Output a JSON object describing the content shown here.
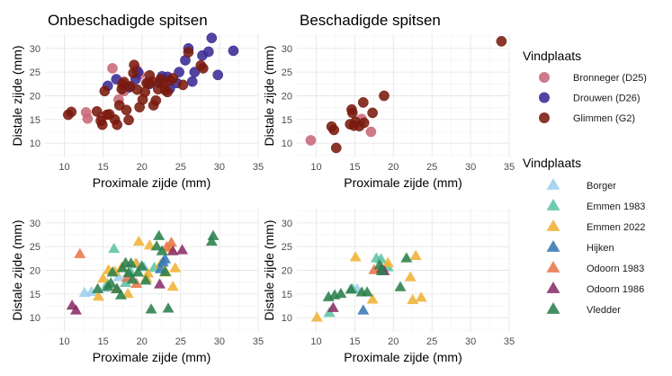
{
  "chart_data": [
    {
      "type": "scatter",
      "title": "Onbeschadigde spitsen",
      "xlabel": "Proximale zijde (mm)",
      "ylabel": "Distale zijde (mm)",
      "xlim": [
        7.5,
        35
      ],
      "ylim": [
        7,
        33
      ],
      "xticks": [
        10,
        15,
        20,
        25,
        30,
        35
      ],
      "yticks": [
        10,
        15,
        20,
        25,
        30
      ],
      "grid": true,
      "marker": "circle",
      "legend_group": "sites1",
      "series": [
        {
          "name": "Bronneger (D25)",
          "points": [
            [
              12.8,
              16.5
            ],
            [
              13.0,
              15.2
            ],
            [
              16.2,
              25.8
            ],
            [
              17.0,
              19.2
            ],
            [
              17.7,
              21.0
            ],
            [
              19.3,
              25.5
            ],
            [
              19.7,
              24.5
            ],
            [
              14.8,
              15.6
            ]
          ]
        },
        {
          "name": "Drouwen (D26)",
          "points": [
            [
              15.6,
              22.1
            ],
            [
              16.7,
              23.5
            ],
            [
              18.4,
              21.8
            ],
            [
              19.2,
              23.5
            ],
            [
              19.5,
              25.0
            ],
            [
              21.0,
              22.5
            ],
            [
              22.3,
              22.7
            ],
            [
              23.3,
              24.0
            ],
            [
              23.6,
              21.5
            ],
            [
              24.8,
              25.0
            ],
            [
              25.6,
              27.5
            ],
            [
              26.0,
              30.0
            ],
            [
              26.5,
              23.0
            ],
            [
              26.8,
              25.0
            ],
            [
              27.8,
              28.5
            ],
            [
              28.6,
              29.3
            ],
            [
              29.0,
              32.2
            ],
            [
              29.8,
              24.4
            ],
            [
              31.8,
              29.5
            ],
            [
              24.5,
              22.7
            ],
            [
              22.6,
              24.1
            ]
          ]
        },
        {
          "name": "Glimmen (G2)",
          "points": [
            [
              10.5,
              16.0
            ],
            [
              10.9,
              16.6
            ],
            [
              14.2,
              16.7
            ],
            [
              14.7,
              14.7
            ],
            [
              14.9,
              13.9
            ],
            [
              15.2,
              21.0
            ],
            [
              15.5,
              16.0
            ],
            [
              15.8,
              16.1
            ],
            [
              16.5,
              15.0
            ],
            [
              16.8,
              13.9
            ],
            [
              17.1,
              18.0
            ],
            [
              17.5,
              22.4
            ],
            [
              17.7,
              22.9
            ],
            [
              18.0,
              17.0
            ],
            [
              18.3,
              14.9
            ],
            [
              18.5,
              22.0
            ],
            [
              18.9,
              24.8
            ],
            [
              19.0,
              26.5
            ],
            [
              19.4,
              21.3
            ],
            [
              19.7,
              17.6
            ],
            [
              20.1,
              19.2
            ],
            [
              20.4,
              20.8
            ],
            [
              20.8,
              22.6
            ],
            [
              21.0,
              24.3
            ],
            [
              21.3,
              23.0
            ],
            [
              21.5,
              18.0
            ],
            [
              21.8,
              19.0
            ],
            [
              22.1,
              21.4
            ],
            [
              22.4,
              23.5
            ],
            [
              22.8,
              22.7
            ],
            [
              23.0,
              21.2
            ],
            [
              23.3,
              20.8
            ],
            [
              23.6,
              23.2
            ],
            [
              24.0,
              23.7
            ],
            [
              25.3,
              22.3
            ],
            [
              26.0,
              29.2
            ],
            [
              27.6,
              26.4
            ],
            [
              27.9,
              25.8
            ],
            [
              17.4,
              21.4
            ],
            [
              20.6,
              22.7
            ]
          ]
        }
      ]
    },
    {
      "type": "scatter",
      "title": "Beschadigde spitsen",
      "xlabel": "Proximale zijde (mm)",
      "ylabel": "Distale zijde (mm)",
      "xlim": [
        7.5,
        35
      ],
      "ylim": [
        7,
        33
      ],
      "xticks": [
        10,
        15,
        20,
        25,
        30,
        35
      ],
      "yticks": [
        10,
        15,
        20,
        25,
        30
      ],
      "grid": true,
      "marker": "circle",
      "legend_group": "sites1",
      "series": [
        {
          "name": "Bronneger (D25)",
          "points": [
            [
              9.3,
              10.6
            ],
            [
              15.9,
              15.1
            ],
            [
              17.1,
              12.4
            ]
          ]
        },
        {
          "name": "Drouwen (D26)",
          "points": []
        },
        {
          "name": "Glimmen (G2)",
          "points": [
            [
              12.0,
              13.5
            ],
            [
              12.3,
              12.8
            ],
            [
              12.6,
              9.0
            ],
            [
              14.4,
              14.0
            ],
            [
              14.6,
              17.1
            ],
            [
              14.7,
              16.4
            ],
            [
              14.9,
              13.7
            ],
            [
              15.1,
              14.5
            ],
            [
              15.6,
              13.6
            ],
            [
              16.1,
              18.6
            ],
            [
              16.2,
              14.3
            ],
            [
              17.3,
              16.4
            ],
            [
              18.8,
              20.0
            ],
            [
              34.0,
              31.5
            ]
          ]
        }
      ]
    },
    {
      "type": "scatter",
      "xlabel": "Proximale zijde (mm)",
      "ylabel": "Distale zijde (mm)",
      "xlim": [
        7.5,
        35
      ],
      "ylim": [
        7,
        33
      ],
      "xticks": [
        10,
        15,
        20,
        25,
        30,
        35
      ],
      "yticks": [
        10,
        15,
        20,
        25,
        30
      ],
      "grid": true,
      "marker": "triangle",
      "legend_group": "sites2",
      "series": [
        {
          "name": "Borger",
          "points": [
            [
              12.6,
              15.2
            ],
            [
              13.5,
              15.4
            ],
            [
              15.2,
              16.2
            ],
            [
              17.0,
              18.5
            ],
            [
              18.2,
              19.2
            ],
            [
              19.4,
              21.2
            ],
            [
              20.3,
              20.6
            ],
            [
              22.8,
              21.9
            ]
          ]
        },
        {
          "name": "Emmen 1983",
          "points": [
            [
              16.4,
              24.5
            ],
            [
              15.6,
              17.0
            ],
            [
              17.9,
              17.3
            ],
            [
              18.6,
              19.5
            ],
            [
              21.6,
              20.5
            ]
          ]
        },
        {
          "name": "Emmen 2022",
          "points": [
            [
              14.4,
              14.4
            ],
            [
              15.0,
              18.2
            ],
            [
              15.7,
              20.0
            ],
            [
              16.5,
              19.7
            ],
            [
              17.4,
              20.6
            ],
            [
              18.2,
              15.0
            ],
            [
              19.2,
              21.4
            ],
            [
              19.6,
              26.0
            ],
            [
              20.8,
              19.3
            ],
            [
              21.0,
              25.2
            ],
            [
              22.4,
              21.2
            ],
            [
              23.1,
              19.5
            ],
            [
              23.7,
              24.6
            ],
            [
              24.3,
              20.4
            ],
            [
              24.0,
              16.5
            ],
            [
              20.6,
              18.3
            ]
          ]
        },
        {
          "name": "Hijken",
          "points": [
            [
              22.4,
              20.2
            ],
            [
              22.7,
              21.6
            ],
            [
              23.0,
              22.3
            ]
          ]
        },
        {
          "name": "Odoorn 1983",
          "points": [
            [
              12.0,
              23.4
            ],
            [
              16.7,
              16.0
            ],
            [
              18.1,
              18.4
            ],
            [
              19.3,
              17.1
            ],
            [
              23.2,
              24.9
            ],
            [
              23.8,
              25.8
            ]
          ]
        },
        {
          "name": "Odoorn 1986",
          "points": [
            [
              11.0,
              12.5
            ],
            [
              11.5,
              11.5
            ],
            [
              22.3,
              17.0
            ],
            [
              24.0,
              24.0
            ],
            [
              25.2,
              24.2
            ]
          ]
        },
        {
          "name": "Vledder",
          "points": [
            [
              14.3,
              16.0
            ],
            [
              15.6,
              16.5
            ],
            [
              16.0,
              17.2
            ],
            [
              16.8,
              16.0
            ],
            [
              17.3,
              14.7
            ],
            [
              17.5,
              20.4
            ],
            [
              17.9,
              21.5
            ],
            [
              18.3,
              19.4
            ],
            [
              18.8,
              18.0
            ],
            [
              19.5,
              19.5
            ],
            [
              20.0,
              20.8
            ],
            [
              20.5,
              17.8
            ],
            [
              21.2,
              11.7
            ],
            [
              21.9,
              25.0
            ],
            [
              22.2,
              27.2
            ],
            [
              22.6,
              24.0
            ],
            [
              23.0,
              19.6
            ],
            [
              23.4,
              11.9
            ],
            [
              29.0,
              26.0
            ],
            [
              29.2,
              27.2
            ],
            [
              18.6,
              21.4
            ],
            [
              16.2,
              19.5
            ]
          ]
        }
      ]
    },
    {
      "type": "scatter",
      "xlabel": "Proximale zijde (mm)",
      "ylabel": "Distale zijde (mm)",
      "xlim": [
        7.5,
        35
      ],
      "ylim": [
        7,
        33
      ],
      "xticks": [
        10,
        15,
        20,
        25,
        30,
        35
      ],
      "yticks": [
        10,
        15,
        20,
        25,
        30
      ],
      "grid": true,
      "marker": "triangle",
      "legend_group": "sites2",
      "series": [
        {
          "name": "Borger",
          "points": [
            [
              15.3,
              16.0
            ]
          ]
        },
        {
          "name": "Emmen 1983",
          "points": [
            [
              11.7,
              11.0
            ],
            [
              14.7,
              16.0
            ],
            [
              17.8,
              22.5
            ],
            [
              18.4,
              22.3
            ],
            [
              19.3,
              20.6
            ]
          ]
        },
        {
          "name": "Emmen 2022",
          "points": [
            [
              10.1,
              10.0
            ],
            [
              15.1,
              22.7
            ],
            [
              17.3,
              13.8
            ],
            [
              19.3,
              21.5
            ],
            [
              22.2,
              18.5
            ],
            [
              22.5,
              13.7
            ],
            [
              22.9,
              23.0
            ],
            [
              23.6,
              14.2
            ]
          ]
        },
        {
          "name": "Hijken",
          "points": [
            [
              16.1,
              11.5
            ]
          ]
        },
        {
          "name": "Odoorn 1983",
          "points": [
            [
              17.5,
              20.0
            ]
          ]
        },
        {
          "name": "Odoorn 1986",
          "points": [
            [
              12.2,
              12.0
            ],
            [
              18.5,
              20.3
            ],
            [
              18.8,
              19.8
            ]
          ]
        },
        {
          "name": "Vledder",
          "points": [
            [
              11.6,
              14.3
            ],
            [
              13.2,
              15.0
            ],
            [
              14.5,
              15.9
            ],
            [
              15.9,
              15.3
            ],
            [
              16.6,
              15.3
            ],
            [
              18.2,
              21.0
            ],
            [
              18.5,
              19.8
            ],
            [
              21.7,
              22.5
            ],
            [
              20.9,
              16.4
            ],
            [
              12.4,
              14.7
            ]
          ]
        }
      ]
    }
  ],
  "legend1": {
    "title": "Vindplaats",
    "items": [
      {
        "label": "Bronneger (D25)",
        "color": "#C86878"
      },
      {
        "label": "Drouwen (D26)",
        "color": "#3A2A94"
      },
      {
        "label": "Glimmen (G2)",
        "color": "#7A1A0E"
      }
    ]
  },
  "legend2": {
    "title": "Vindplaats",
    "items": [
      {
        "label": "Borger",
        "color": "#9DCFEA"
      },
      {
        "label": "Emmen 1983",
        "color": "#5CC3A6"
      },
      {
        "label": "Emmen 2022",
        "color": "#EFB234"
      },
      {
        "label": "Hijken",
        "color": "#3579B5"
      },
      {
        "label": "Odoorn 1983",
        "color": "#E8754A"
      },
      {
        "label": "Odoorn 1986",
        "color": "#892E66"
      },
      {
        "label": "Vledder",
        "color": "#2A7F4B"
      }
    ]
  }
}
